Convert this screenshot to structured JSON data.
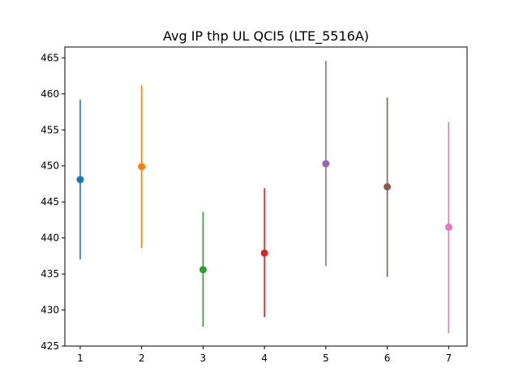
{
  "chart_data": {
    "type": "scatter",
    "title": "Avg IP thp UL QCI5 (LTE_5516A)",
    "xlabel": "",
    "ylabel": "",
    "xlim": [
      0.75,
      7.3
    ],
    "ylim": [
      425,
      466.5
    ],
    "x_ticks": [
      1,
      2,
      3,
      4,
      5,
      6,
      7
    ],
    "y_ticks": [
      425,
      430,
      435,
      440,
      445,
      450,
      455,
      460,
      465
    ],
    "grid": false,
    "legend": "none",
    "series": [
      {
        "x": 1,
        "y": 448.1,
        "err_low": 437.0,
        "err_high": 459.2,
        "color": "#1f77b4"
      },
      {
        "x": 2,
        "y": 449.9,
        "err_low": 438.6,
        "err_high": 461.2,
        "color": "#ff7f0e"
      },
      {
        "x": 3,
        "y": 435.6,
        "err_low": 427.7,
        "err_high": 443.6,
        "color": "#2ca02c"
      },
      {
        "x": 4,
        "y": 437.9,
        "err_low": 429.0,
        "err_high": 446.9,
        "color": "#d62728"
      },
      {
        "x": 5,
        "y": 450.3,
        "err_low": 436.1,
        "err_high": 464.6,
        "color": "#9467bd"
      },
      {
        "x": 6,
        "y": 447.1,
        "err_low": 434.6,
        "err_high": 459.5,
        "color": "#8c564b"
      },
      {
        "x": 7,
        "y": 441.5,
        "err_low": 426.8,
        "err_high": 456.1,
        "color": "#e377c2"
      }
    ]
  }
}
